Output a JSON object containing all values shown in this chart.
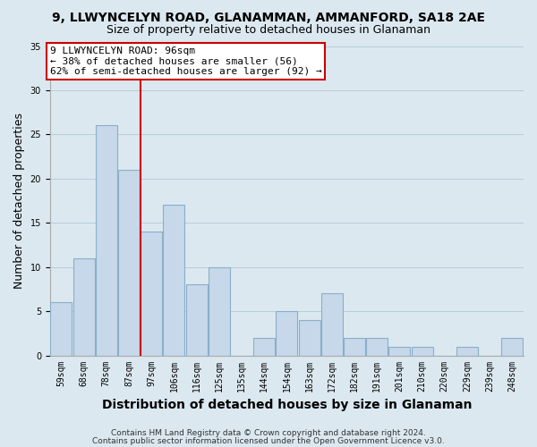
{
  "title": "9, LLWYNCELYN ROAD, GLANAMMAN, AMMANFORD, SA18 2AE",
  "subtitle": "Size of property relative to detached houses in Glanaman",
  "xlabel": "Distribution of detached houses by size in Glanaman",
  "ylabel": "Number of detached properties",
  "bar_labels": [
    "59sqm",
    "68sqm",
    "78sqm",
    "87sqm",
    "97sqm",
    "106sqm",
    "116sqm",
    "125sqm",
    "135sqm",
    "144sqm",
    "154sqm",
    "163sqm",
    "172sqm",
    "182sqm",
    "191sqm",
    "201sqm",
    "210sqm",
    "220sqm",
    "229sqm",
    "239sqm",
    "248sqm"
  ],
  "bar_values": [
    6,
    11,
    26,
    21,
    14,
    17,
    8,
    10,
    0,
    2,
    5,
    4,
    7,
    2,
    2,
    1,
    1,
    0,
    1,
    0,
    2
  ],
  "bar_color": "#c6d8ea",
  "bar_edge_color": "#8aafc8",
  "vline_x": 4,
  "vline_color": "#cc0000",
  "ylim": [
    0,
    35
  ],
  "yticks": [
    0,
    5,
    10,
    15,
    20,
    25,
    30,
    35
  ],
  "annotation_title": "9 LLWYNCELYN ROAD: 96sqm",
  "annotation_line1": "← 38% of detached houses are smaller (56)",
  "annotation_line2": "62% of semi-detached houses are larger (92) →",
  "annotation_box_color": "white",
  "annotation_box_edge": "#cc0000",
  "footer1": "Contains HM Land Registry data © Crown copyright and database right 2024.",
  "footer2": "Contains public sector information licensed under the Open Government Licence v3.0.",
  "background_color": "#dce8f0",
  "plot_background": "#dce8f0",
  "grid_color": "#b8ccd8",
  "title_fontsize": 10,
  "subtitle_fontsize": 9,
  "axis_label_fontsize": 9,
  "tick_fontsize": 7,
  "footer_fontsize": 6.5,
  "annotation_fontsize": 8
}
